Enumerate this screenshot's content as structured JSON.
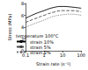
{
  "chart_data": {
    "type": "line",
    "x_label": "Strain rate (s⁻¹)",
    "y_label": "Stress (MPa)",
    "annotations": [
      "temperature 100°C"
    ],
    "log": "x",
    "grid": false,
    "legend": "lower left",
    "x": [
      0.1,
      0.3,
      1,
      3,
      10,
      30,
      100
    ],
    "xlim": [
      0.1,
      100
    ],
    "xticks": [
      0.1,
      1,
      10,
      100
    ],
    "ylim": [
      0,
      8
    ],
    "yticks": [
      0,
      2,
      4,
      6,
      8
    ],
    "series": [
      {
        "name": "strain 10%",
        "color": "#000000",
        "line_style": "solid",
        "values": [
          5.5,
          6.2,
          6.8,
          7.3,
          7.5,
          7.4,
          7.2
        ]
      },
      {
        "name": "strain 5%",
        "color": "#444444",
        "line_style": "dashed",
        "values": [
          4.8,
          5.4,
          6.0,
          6.5,
          6.8,
          6.8,
          6.6
        ]
      },
      {
        "name": "strain 2%",
        "color": "#777777",
        "line_style": "dotted",
        "values": [
          4.0,
          4.6,
          5.2,
          5.8,
          6.1,
          6.2,
          6.0
        ]
      }
    ]
  }
}
